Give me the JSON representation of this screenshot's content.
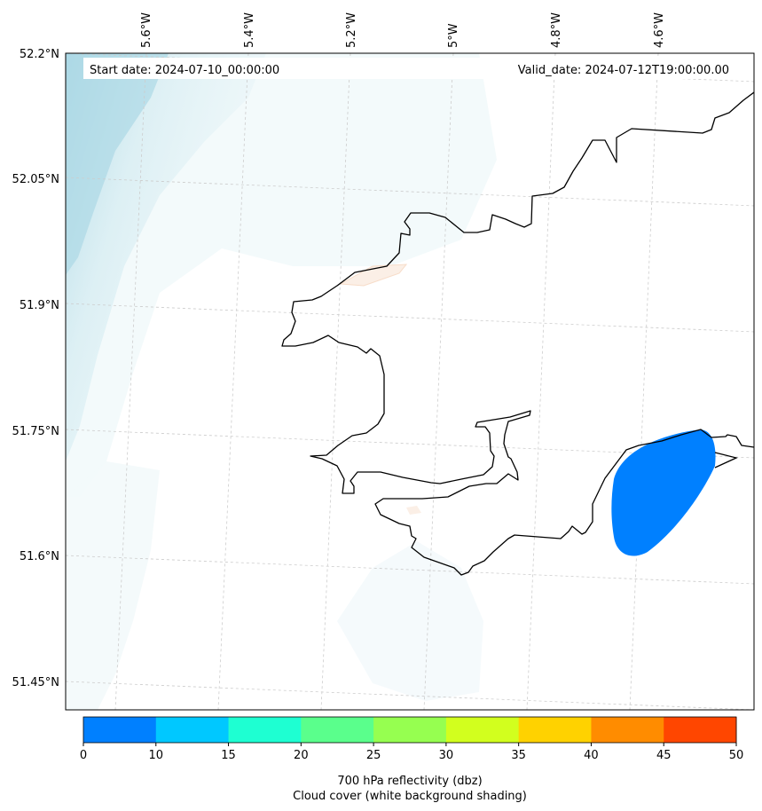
{
  "map": {
    "start_date": "Start date: 2024-07-10_00:00:00",
    "valid_date": "Valid_date: 2024-07-12T19:00:00.00",
    "lon_labels": [
      "5.6°W",
      "5.4°W",
      "5.2°W",
      "5°W",
      "4.8°W",
      "4.6°W"
    ],
    "lat_labels": [
      "52.2°N",
      "52.05°N",
      "51.9°N",
      "51.75°N",
      "51.6°N",
      "51.45°N"
    ]
  },
  "colorbar": {
    "tick_labels": [
      "0",
      "10",
      "15",
      "20",
      "25",
      "30",
      "35",
      "40",
      "45",
      "50"
    ],
    "colors": [
      "#0080ff",
      "#00c8ff",
      "#1effd2",
      "#5aff8c",
      "#96ff50",
      "#d2ff1e",
      "#ffd200",
      "#ff8c00",
      "#ff4600"
    ],
    "label_line1": "700 hPa reflectivity (dbz)",
    "label_line2": "Cloud cover (white background shading)"
  }
}
